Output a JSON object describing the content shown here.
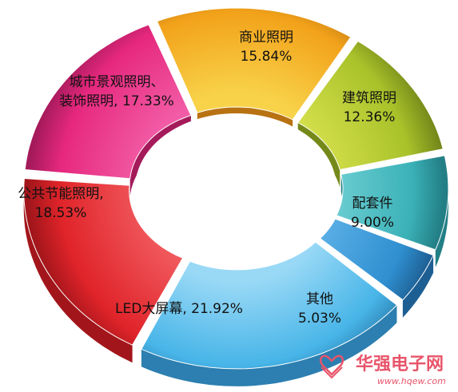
{
  "chart_data": {
    "type": "pie",
    "variant": "donut",
    "exploded": true,
    "title": "",
    "categories": [
      "商业照明",
      "建筑照明",
      "配套件",
      "其他",
      "LED大屏幕",
      "公共节能照明",
      "城市景观照明、装饰照明"
    ],
    "values": [
      15.84,
      12.36,
      9.0,
      5.03,
      21.92,
      18.53,
      17.33
    ],
    "value_labels": [
      "15.84%",
      "12.36%",
      "9.00%",
      "5.03%",
      "21.92%",
      "18.53%",
      "17.33%"
    ],
    "label_lines": [
      [
        "商业照明",
        "15.84%"
      ],
      [
        "建筑照明",
        "12.36%"
      ],
      [
        "配套件",
        "9.00%"
      ],
      [
        "其他",
        "5.03%"
      ],
      [
        "LED大屏幕, 21.92%"
      ],
      [
        "公共节能照明,",
        "18.53%"
      ],
      [
        "城市景观照明、",
        "装饰照明, 17.33%"
      ]
    ],
    "colors": [
      "#f2a21a",
      "#a9c22a",
      "#3bb2b8",
      "#2f8fd0",
      "#48b5e8",
      "#e0242a",
      "#e6287e"
    ],
    "colors_dark": [
      "#b97212",
      "#75891a",
      "#237f86",
      "#1e5f93",
      "#2c7fb0",
      "#a2161b",
      "#a41a5a"
    ],
    "colors_light": [
      "#f8d34a",
      "#d2de4a",
      "#6fcfd3",
      "#5cb0e6",
      "#9ad9f6",
      "#f0585c",
      "#f25ca6"
    ]
  },
  "watermark": {
    "name": "华强电子网",
    "url": "www.hqew.com",
    "color": "#e8546a"
  }
}
